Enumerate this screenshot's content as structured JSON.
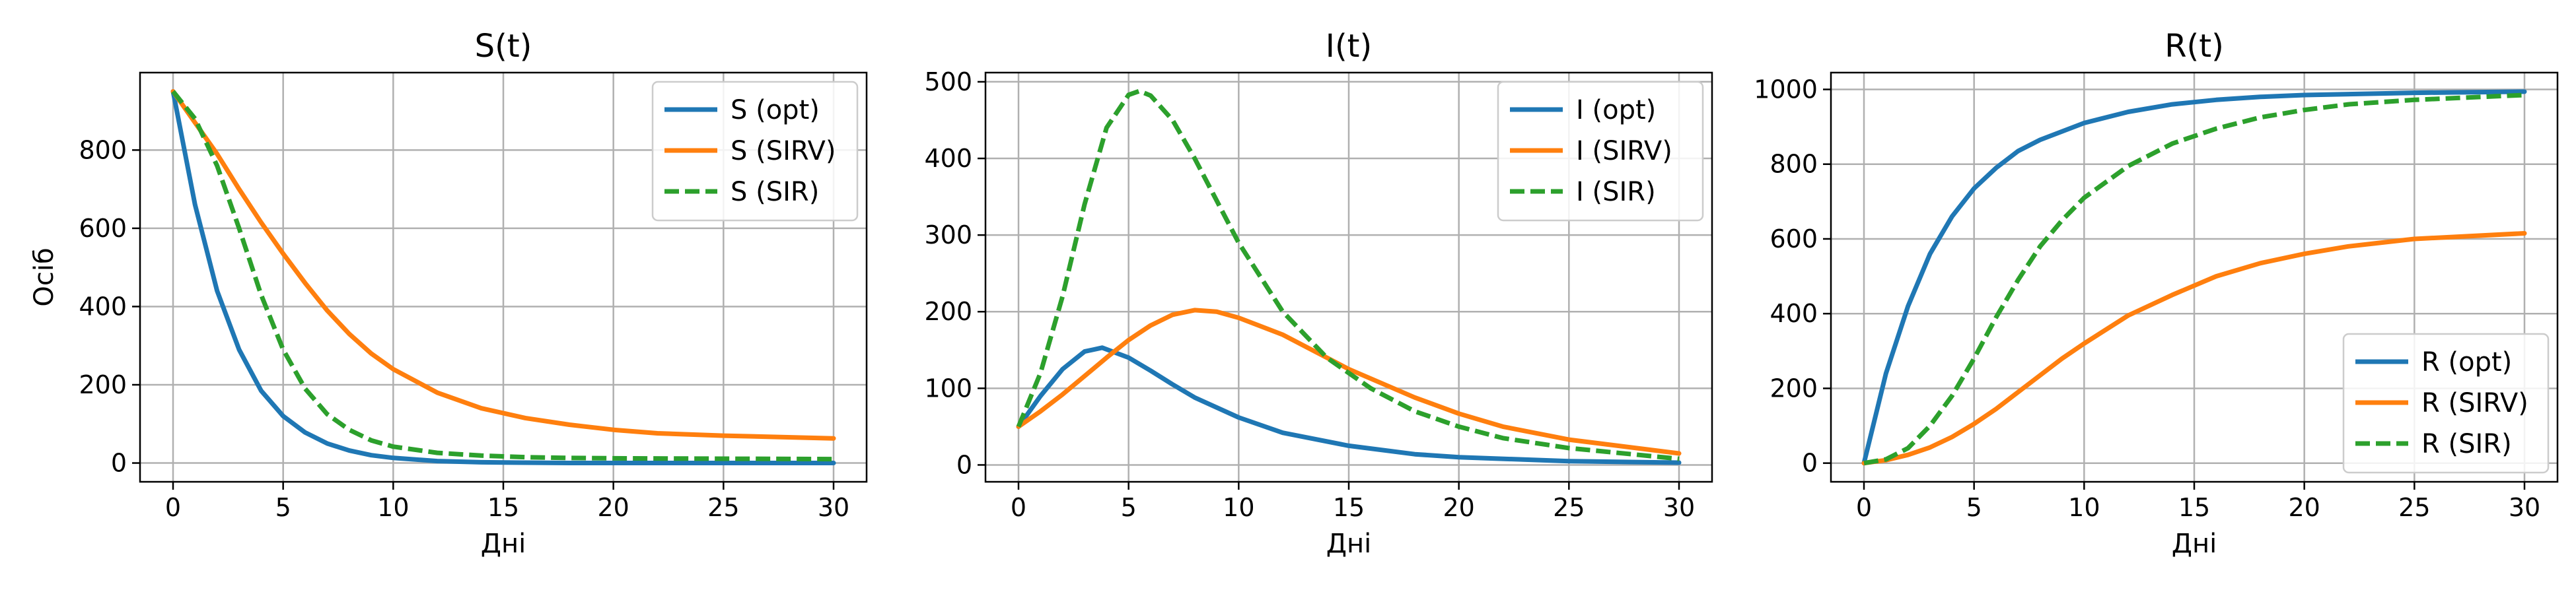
{
  "colors": {
    "opt": "#1f77b4",
    "sirv": "#ff7f0e",
    "sir": "#2ca02c"
  },
  "chart_data": [
    {
      "type": "line",
      "title": "S(t)",
      "xlabel": "Дні",
      "ylabel": "Осіб",
      "xlim": [
        -1.5,
        31.5
      ],
      "ylim": [
        -48,
        998
      ],
      "xticks": [
        0,
        5,
        10,
        15,
        20,
        25,
        30
      ],
      "yticks": [
        0,
        200,
        400,
        600,
        800
      ],
      "legend": "upper right",
      "grid": true,
      "series": [
        {
          "name": "S (opt)",
          "color": "opt",
          "dash": "solid",
          "x": [
            0,
            1,
            2,
            3,
            4,
            5,
            6,
            7,
            8,
            9,
            10,
            12,
            14,
            16,
            18,
            20,
            25,
            30
          ],
          "y": [
            950,
            660,
            440,
            290,
            185,
            120,
            78,
            50,
            32,
            20,
            13,
            5,
            2,
            1,
            0,
            0,
            0,
            0
          ]
        },
        {
          "name": "S (SIRV)",
          "color": "sirv",
          "dash": "solid",
          "x": [
            0,
            1,
            2,
            3,
            4,
            5,
            6,
            7,
            8,
            9,
            10,
            12,
            14,
            16,
            18,
            20,
            22,
            25,
            30
          ],
          "y": [
            950,
            870,
            790,
            700,
            615,
            535,
            460,
            390,
            330,
            280,
            240,
            180,
            140,
            115,
            98,
            85,
            76,
            70,
            63
          ]
        },
        {
          "name": "S (SIR)",
          "color": "sir",
          "dash": "dashed",
          "x": [
            0,
            1,
            2,
            3,
            4,
            5,
            6,
            7,
            8,
            9,
            10,
            12,
            14,
            16,
            18,
            20,
            25,
            30
          ],
          "y": [
            950,
            880,
            760,
            600,
            430,
            290,
            190,
            125,
            85,
            58,
            42,
            26,
            19,
            15,
            13,
            12,
            11,
            10
          ]
        }
      ]
    },
    {
      "type": "line",
      "title": "I(t)",
      "xlabel": "Дні",
      "ylabel": "",
      "xlim": [
        -1.5,
        31.5
      ],
      "ylim": [
        -22,
        512
      ],
      "xticks": [
        0,
        5,
        10,
        15,
        20,
        25,
        30
      ],
      "yticks": [
        0,
        100,
        200,
        300,
        400,
        500
      ],
      "legend": "upper right",
      "grid": true,
      "series": [
        {
          "name": "I (opt)",
          "color": "opt",
          "dash": "solid",
          "x": [
            0,
            1,
            2,
            3,
            3.8,
            5,
            6,
            7,
            8,
            10,
            12,
            15,
            18,
            20,
            25,
            30
          ],
          "y": [
            50,
            90,
            125,
            148,
            153,
            140,
            123,
            105,
            88,
            62,
            42,
            25,
            14,
            10,
            5,
            3
          ]
        },
        {
          "name": "I (SIRV)",
          "color": "sirv",
          "dash": "solid",
          "x": [
            0,
            1,
            2,
            3,
            4,
            5,
            6,
            7,
            8,
            9,
            10,
            12,
            15,
            18,
            20,
            22,
            25,
            30
          ],
          "y": [
            50,
            70,
            92,
            116,
            140,
            163,
            182,
            196,
            202,
            200,
            192,
            170,
            125,
            88,
            67,
            50,
            33,
            15
          ]
        },
        {
          "name": "I (SIR)",
          "color": "sir",
          "dash": "dashed",
          "x": [
            0,
            1,
            2,
            3,
            4,
            5,
            5.5,
            6,
            7,
            8,
            9,
            10,
            12,
            14,
            16,
            18,
            20,
            22,
            25,
            30
          ],
          "y": [
            50,
            120,
            220,
            340,
            440,
            483,
            488,
            482,
            450,
            400,
            345,
            290,
            200,
            140,
            100,
            70,
            50,
            35,
            22,
            8
          ]
        }
      ]
    },
    {
      "type": "line",
      "title": "R(t)",
      "xlabel": "Дні",
      "ylabel": "",
      "xlim": [
        -1.5,
        31.5
      ],
      "ylim": [
        -50,
        1045
      ],
      "xticks": [
        0,
        5,
        10,
        15,
        20,
        25,
        30
      ],
      "yticks": [
        0,
        200,
        400,
        600,
        800,
        1000
      ],
      "legend": "lower right",
      "grid": true,
      "series": [
        {
          "name": "R (opt)",
          "color": "opt",
          "dash": "solid",
          "x": [
            0,
            1,
            2,
            3,
            4,
            5,
            6,
            7,
            8,
            10,
            12,
            14,
            16,
            18,
            20,
            25,
            30
          ],
          "y": [
            0,
            240,
            420,
            560,
            660,
            735,
            790,
            835,
            865,
            910,
            940,
            960,
            972,
            980,
            985,
            991,
            994
          ]
        },
        {
          "name": "R (SIRV)",
          "color": "sirv",
          "dash": "solid",
          "x": [
            0,
            1,
            2,
            3,
            4,
            5,
            6,
            7,
            8,
            9,
            10,
            12,
            14,
            16,
            18,
            20,
            22,
            25,
            30
          ],
          "y": [
            0,
            8,
            22,
            42,
            70,
            105,
            145,
            190,
            235,
            280,
            320,
            395,
            450,
            500,
            535,
            560,
            580,
            600,
            615
          ]
        },
        {
          "name": "R (SIR)",
          "color": "sir",
          "dash": "dashed",
          "x": [
            0,
            1,
            2,
            3,
            4,
            5,
            6,
            7,
            8,
            9,
            10,
            12,
            14,
            16,
            18,
            20,
            22,
            25,
            30
          ],
          "y": [
            0,
            10,
            40,
            100,
            180,
            280,
            390,
            490,
            580,
            650,
            710,
            795,
            855,
            895,
            925,
            945,
            960,
            972,
            985
          ]
        }
      ]
    }
  ]
}
